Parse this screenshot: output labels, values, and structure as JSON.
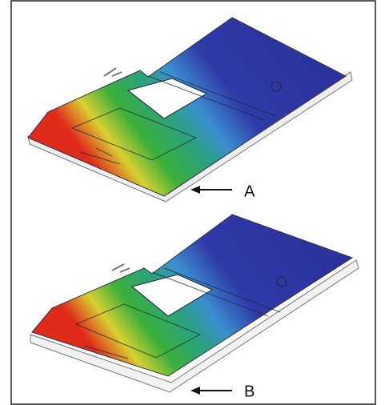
{
  "callouts": [
    {
      "label": "A"
    },
    {
      "label": "B"
    }
  ]
}
